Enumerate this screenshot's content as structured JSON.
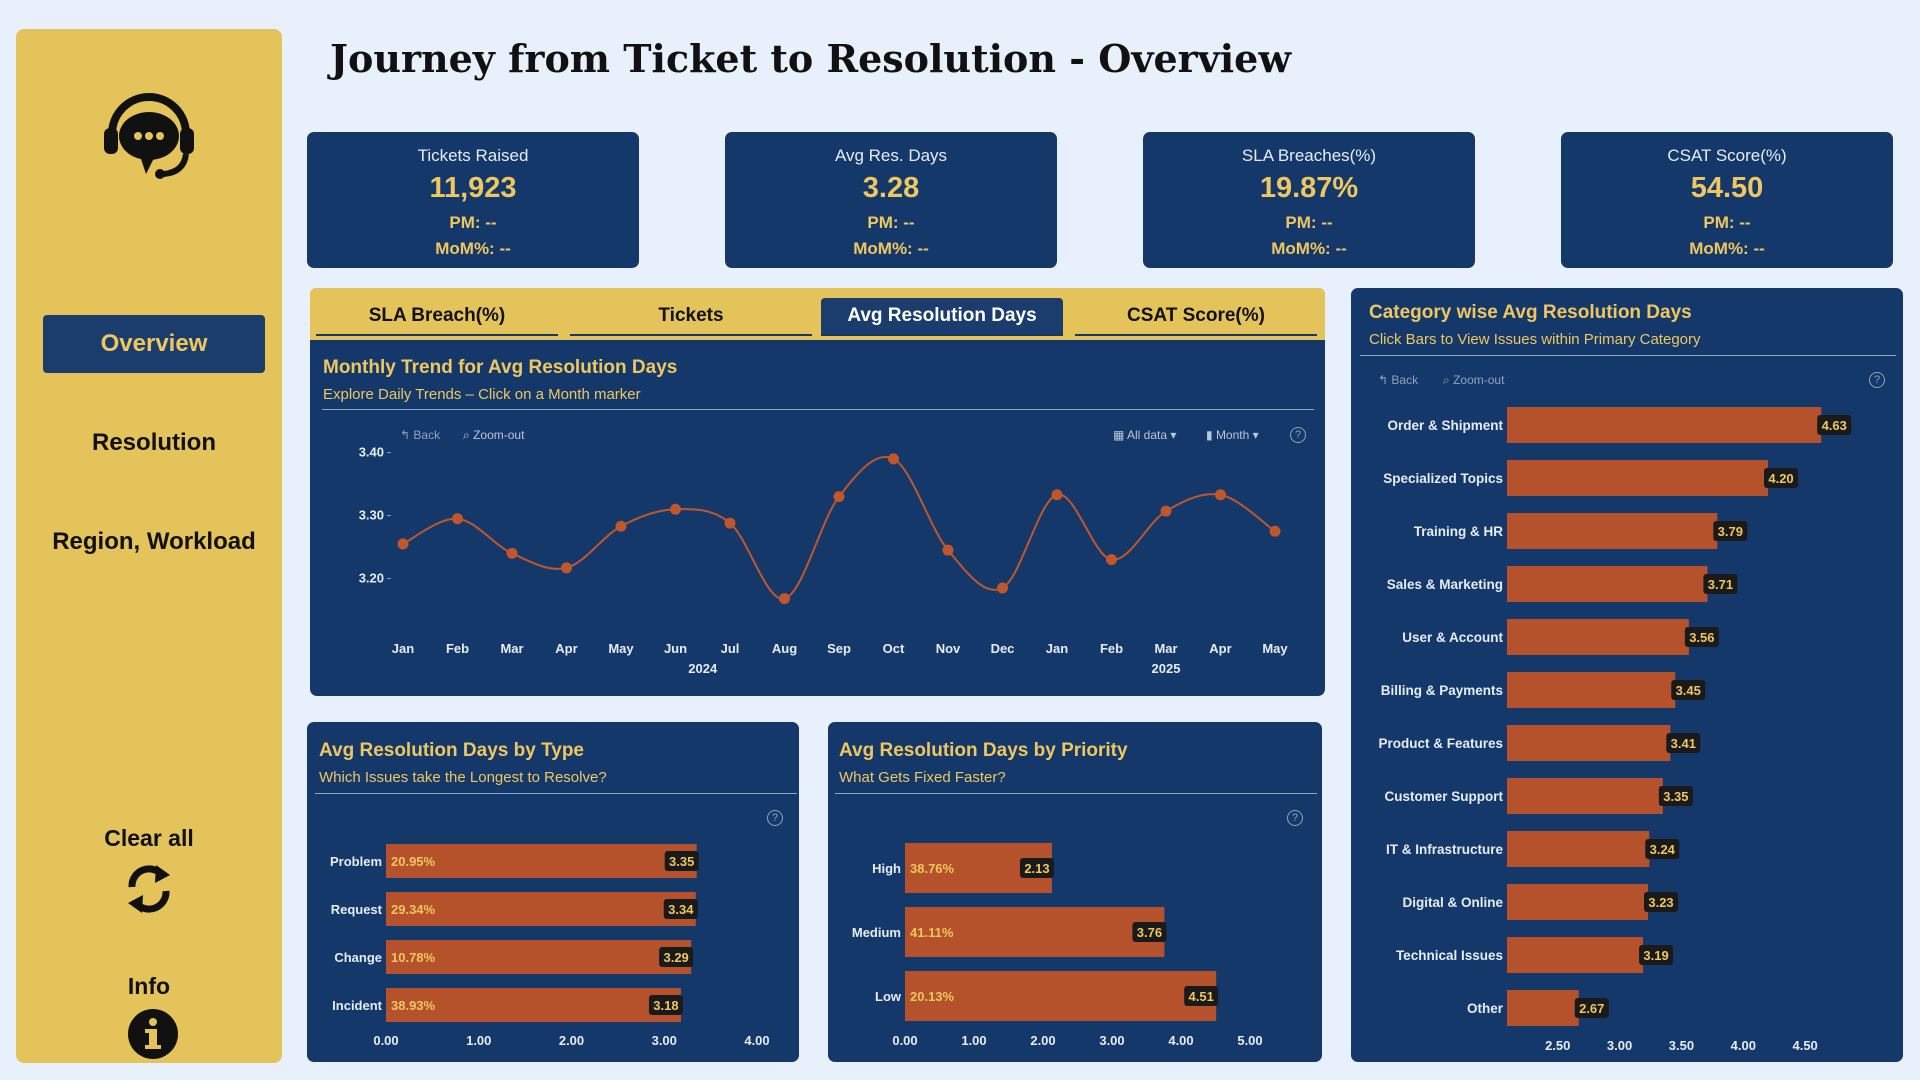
{
  "page_title": "Journey from Ticket to Resolution - Overview",
  "sidebar": {
    "nav": [
      {
        "label": "Overview",
        "active": true
      },
      {
        "label": "Resolution",
        "active": false
      },
      {
        "label": "Region, Workload",
        "active": false
      }
    ],
    "clear_all": "Clear all",
    "info": "Info"
  },
  "kpis": [
    {
      "label": "Tickets Raised",
      "value": "11,923",
      "pm": "PM: --",
      "mom": "MoM%: --"
    },
    {
      "label": "Avg Res. Days",
      "value": "3.28",
      "pm": "PM: --",
      "mom": "MoM%: --"
    },
    {
      "label": "SLA Breaches(%)",
      "value": "19.87%",
      "pm": "PM: --",
      "mom": "MoM%: --"
    },
    {
      "label": "CSAT Score(%)",
      "value": "54.50",
      "pm": "PM: --",
      "mom": "MoM%: --"
    }
  ],
  "tabs": [
    "SLA Breach(%)",
    "Tickets",
    "Avg Resolution Days",
    "CSAT Score(%)"
  ],
  "active_tab": "Avg Resolution Days",
  "toolbar": {
    "back": "Back",
    "zoom_out": "Zoom-out",
    "all_data": "All data",
    "month": "Month"
  },
  "trend": {
    "title": "Monthly Trend for Avg Resolution Days",
    "subtitle": "Explore Daily Trends – Click on a Month marker"
  },
  "by_type": {
    "title": "Avg Resolution Days by Type",
    "subtitle": "Which Issues take the Longest to Resolve?"
  },
  "by_priority": {
    "title": "Avg Resolution Days by Priority",
    "subtitle": "What Gets Fixed Faster?"
  },
  "by_category": {
    "title": "Category wise Avg Resolution Days",
    "subtitle": "Click Bars to View Issues within Primary Category"
  },
  "colors": {
    "navy": "#14386a",
    "gold": "#e4c35a",
    "accent": "#f0c75e",
    "bar": "#b5522b",
    "line": "#c0562c"
  },
  "chart_data": [
    {
      "type": "line",
      "x": [
        "Jan",
        "Feb",
        "Mar",
        "Apr",
        "May",
        "Jun",
        "Jul",
        "Aug",
        "Sep",
        "Oct",
        "Nov",
        "Dec",
        "Jan",
        "Feb",
        "Mar",
        "Apr",
        "May"
      ],
      "x_groups": [
        {
          "label": "2024"
        },
        {
          "label": "2025"
        }
      ],
      "series": [
        {
          "values": [
            3.255,
            3.295,
            3.24,
            3.217,
            3.283,
            3.31,
            3.288,
            3.168,
            3.33,
            3.39,
            3.245,
            3.185,
            3.333,
            3.23,
            3.307,
            3.333,
            3.275
          ]
        }
      ],
      "y_ticks": [
        "3.20",
        "3.30",
        "3.40"
      ],
      "ylim": [
        3.15,
        3.42
      ]
    },
    {
      "type": "bar",
      "orientation": "horizontal",
      "categories": [
        "Problem",
        "Request",
        "Change",
        "Incident"
      ],
      "values": [
        3.35,
        3.34,
        3.29,
        3.18
      ],
      "value_labels": [
        "3.35",
        "3.34",
        "3.29",
        "3.18"
      ],
      "share_labels": [
        "20.95%",
        "29.34%",
        "10.78%",
        "38.93%"
      ],
      "x_ticks": [
        "0.00",
        "1.00",
        "2.00",
        "3.00",
        "4.00"
      ],
      "xlim": [
        0,
        4
      ]
    },
    {
      "type": "bar",
      "orientation": "horizontal",
      "categories": [
        "High",
        "Medium",
        "Low"
      ],
      "values": [
        2.13,
        3.76,
        4.51
      ],
      "value_labels": [
        "2.13",
        "3.76",
        "4.51"
      ],
      "share_labels": [
        "38.76%",
        "41.11%",
        "20.13%"
      ],
      "x_ticks": [
        "0.00",
        "1.00",
        "2.00",
        "3.00",
        "4.00",
        "5.00"
      ],
      "xlim": [
        0,
        5
      ]
    },
    {
      "type": "bar",
      "orientation": "horizontal",
      "categories": [
        "Order & Shipment",
        "Specialized Topics",
        "Training & HR",
        "Sales & Marketing",
        "User & Account",
        "Billing & Payments",
        "Product & Features",
        "Customer Support",
        "IT & Infrastructure",
        "Digital & Online",
        "Technical Issues",
        "Other"
      ],
      "values": [
        4.63,
        4.2,
        3.79,
        3.71,
        3.56,
        3.45,
        3.41,
        3.35,
        3.24,
        3.23,
        3.19,
        2.67
      ],
      "value_labels": [
        "4.63",
        "4.20",
        "3.79",
        "3.71",
        "3.56",
        "3.45",
        "3.41",
        "3.35",
        "3.24",
        "3.23",
        "3.19",
        "2.67"
      ],
      "x_ticks": [
        "2.50",
        "3.00",
        "3.50",
        "4.00",
        "4.50"
      ],
      "xlim": [
        2.09,
        5.0
      ]
    }
  ]
}
